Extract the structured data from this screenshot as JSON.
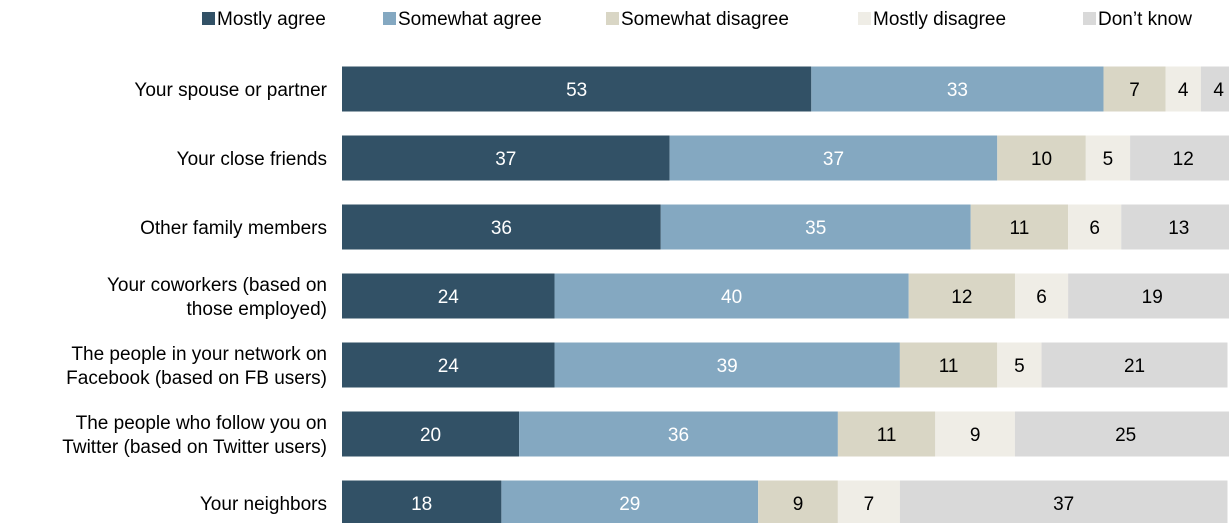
{
  "chart_data": {
    "type": "bar",
    "orientation": "horizontal",
    "stacked": true,
    "legend_position": "top",
    "grid": false,
    "categories": [
      "Your spouse or partner",
      "Your close friends",
      "Other family members",
      "Your coworkers (based on those employed)",
      "The people in your network on Facebook (based on FB users)",
      "The people who follow you on Twitter (based on Twitter users)",
      "Your neighbors"
    ],
    "category_lines": [
      [
        "Your spouse or partner"
      ],
      [
        "Your close friends"
      ],
      [
        "Other family members"
      ],
      [
        "Your coworkers (based on",
        "those employed)"
      ],
      [
        "The people in your network on",
        "Facebook (based on FB users)"
      ],
      [
        "The people who follow you on",
        "Twitter (based on Twitter users)"
      ],
      [
        "Your neighbors"
      ]
    ],
    "series": [
      {
        "name": "Mostly agree",
        "color": "#325166",
        "label_color": "#ffffff",
        "values": [
          53,
          37,
          36,
          24,
          24,
          20,
          18
        ]
      },
      {
        "name": "Somewhat agree",
        "color": "#84a8c1",
        "label_color": "#ffffff",
        "values": [
          33,
          37,
          35,
          40,
          39,
          36,
          29
        ]
      },
      {
        "name": "Somewhat disagree",
        "color": "#d9d6c5",
        "label_color": "#000000",
        "values": [
          7,
          10,
          11,
          12,
          11,
          11,
          9
        ]
      },
      {
        "name": "Mostly disagree",
        "color": "#efede6",
        "label_color": "#000000",
        "values": [
          4,
          5,
          6,
          6,
          5,
          9,
          7
        ]
      },
      {
        "name": "Don’t know",
        "color": "#d9d9d9",
        "label_color": "#000000",
        "values": [
          4,
          12,
          13,
          19,
          21,
          25,
          37
        ]
      }
    ]
  }
}
